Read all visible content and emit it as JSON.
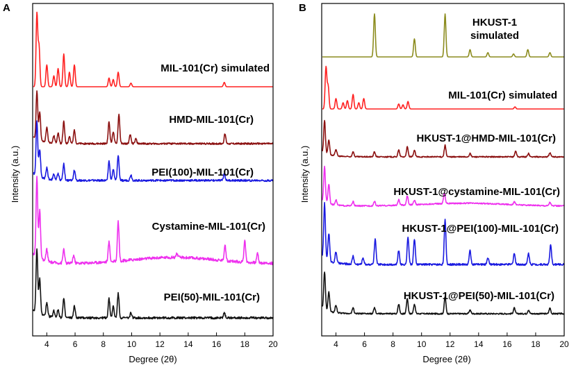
{
  "chart_data": [
    {
      "panel": "A",
      "type": "line",
      "xlabel": "Degree (2θ)",
      "ylabel": "Intensity (a.u.)",
      "xlim": [
        3,
        20
      ],
      "xticks": [
        4,
        6,
        8,
        10,
        12,
        14,
        16,
        18,
        20
      ],
      "yticks_shown": false,
      "series": [
        {
          "name": "MIL-101(Cr) simulated",
          "color": "#ff2020",
          "peaks": [
            [
              3.3,
              1.0
            ],
            [
              3.45,
              0.55
            ],
            [
              4.0,
              0.3
            ],
            [
              4.5,
              0.15
            ],
            [
              4.8,
              0.25
            ],
            [
              5.2,
              0.45
            ],
            [
              5.6,
              0.2
            ],
            [
              5.95,
              0.3
            ],
            [
              8.4,
              0.12
            ],
            [
              8.7,
              0.1
            ],
            [
              9.05,
              0.2
            ],
            [
              9.95,
              0.05
            ],
            [
              16.55,
              0.06
            ]
          ]
        },
        {
          "name": "HMD-MIL-101(Cr)",
          "color": "#8b1010",
          "peaks": [
            [
              3.3,
              1.0
            ],
            [
              3.5,
              0.6
            ],
            [
              4.0,
              0.3
            ],
            [
              4.5,
              0.15
            ],
            [
              4.8,
              0.22
            ],
            [
              5.2,
              0.45
            ],
            [
              5.6,
              0.15
            ],
            [
              5.95,
              0.28
            ],
            [
              8.4,
              0.45
            ],
            [
              8.7,
              0.25
            ],
            [
              9.1,
              0.6
            ],
            [
              9.9,
              0.18
            ],
            [
              10.3,
              0.1
            ],
            [
              16.6,
              0.2
            ]
          ]
        },
        {
          "name": "PEI(100)-MIL-101(Cr)",
          "color": "#1a1ae0",
          "peaks": [
            [
              3.3,
              1.0
            ],
            [
              3.5,
              0.5
            ],
            [
              4.0,
              0.2
            ],
            [
              4.5,
              0.1
            ],
            [
              4.8,
              0.12
            ],
            [
              5.2,
              0.3
            ],
            [
              5.95,
              0.18
            ],
            [
              8.4,
              0.35
            ],
            [
              8.7,
              0.2
            ],
            [
              9.05,
              0.45
            ],
            [
              9.95,
              0.1
            ],
            [
              16.55,
              0.12
            ]
          ]
        },
        {
          "name": "Cystamine-MIL-101(Cr)",
          "color": "#ee30ee",
          "peaks": [
            [
              3.3,
              1.0
            ],
            [
              3.5,
              0.6
            ],
            [
              4.0,
              0.15
            ],
            [
              5.2,
              0.18
            ],
            [
              5.9,
              0.1
            ],
            [
              8.4,
              0.25
            ],
            [
              9.05,
              0.5
            ],
            [
              13.2,
              0.05
            ],
            [
              16.6,
              0.2
            ],
            [
              18.0,
              0.28
            ],
            [
              18.9,
              0.12
            ]
          ]
        },
        {
          "name": "PEI(50)-MIL-101(Cr)",
          "color": "#111111",
          "peaks": [
            [
              3.3,
              1.0
            ],
            [
              3.5,
              0.55
            ],
            [
              4.0,
              0.2
            ],
            [
              4.5,
              0.1
            ],
            [
              4.8,
              0.12
            ],
            [
              5.2,
              0.3
            ],
            [
              5.95,
              0.18
            ],
            [
              8.4,
              0.3
            ],
            [
              8.7,
              0.18
            ],
            [
              9.05,
              0.38
            ],
            [
              9.95,
              0.08
            ],
            [
              16.55,
              0.08
            ]
          ]
        }
      ]
    },
    {
      "panel": "B",
      "type": "line",
      "xlabel": "Degree (2θ)",
      "ylabel": "Intensity (a.u.)",
      "xlim": [
        3,
        20
      ],
      "xticks": [
        4,
        6,
        8,
        10,
        12,
        14,
        16,
        18,
        20
      ],
      "yticks_shown": false,
      "series": [
        {
          "name": "HKUST-1 simulated",
          "label_lines": [
            "HKUST-1",
            "simulated"
          ],
          "color": "#8c8c1e",
          "peaks": [
            [
              6.7,
              1.0
            ],
            [
              9.5,
              0.42
            ],
            [
              11.65,
              1.0
            ],
            [
              13.4,
              0.17
            ],
            [
              14.65,
              0.1
            ],
            [
              16.45,
              0.07
            ],
            [
              17.45,
              0.17
            ],
            [
              19.0,
              0.1
            ]
          ]
        },
        {
          "name": "MIL-101(Cr) simulated",
          "color": "#ff2020",
          "peaks": [
            [
              3.3,
              1.0
            ],
            [
              3.45,
              0.55
            ],
            [
              4.0,
              0.25
            ],
            [
              4.5,
              0.15
            ],
            [
              4.8,
              0.2
            ],
            [
              5.2,
              0.35
            ],
            [
              5.6,
              0.15
            ],
            [
              5.95,
              0.25
            ],
            [
              8.4,
              0.12
            ],
            [
              8.7,
              0.1
            ],
            [
              9.05,
              0.18
            ],
            [
              16.55,
              0.05
            ]
          ]
        },
        {
          "name": "HKUST-1@HMD-MIL-101(Cr)",
          "color": "#8b1010",
          "peaks": [
            [
              3.2,
              1.0
            ],
            [
              3.5,
              0.45
            ],
            [
              4.0,
              0.2
            ],
            [
              5.2,
              0.15
            ],
            [
              6.7,
              0.15
            ],
            [
              8.4,
              0.2
            ],
            [
              9.0,
              0.3
            ],
            [
              9.5,
              0.2
            ],
            [
              11.65,
              0.35
            ],
            [
              13.4,
              0.1
            ],
            [
              16.6,
              0.18
            ],
            [
              17.5,
              0.1
            ],
            [
              19.0,
              0.12
            ]
          ]
        },
        {
          "name": "HKUST-1@cystamine-MIL-101(Cr)",
          "color": "#ee30ee",
          "peaks": [
            [
              3.2,
              1.0
            ],
            [
              3.5,
              0.55
            ],
            [
              4.0,
              0.15
            ],
            [
              5.2,
              0.12
            ],
            [
              6.7,
              0.12
            ],
            [
              8.4,
              0.15
            ],
            [
              9.0,
              0.25
            ],
            [
              9.5,
              0.12
            ],
            [
              11.6,
              0.3
            ],
            [
              16.5,
              0.08
            ],
            [
              19.0,
              0.1
            ]
          ]
        },
        {
          "name": "HKUST-1@PEI(100)-MIL-101(Cr)",
          "color": "#1a1ae0",
          "peaks": [
            [
              3.2,
              1.0
            ],
            [
              3.5,
              0.5
            ],
            [
              4.0,
              0.2
            ],
            [
              5.2,
              0.15
            ],
            [
              5.9,
              0.12
            ],
            [
              6.75,
              0.45
            ],
            [
              8.4,
              0.25
            ],
            [
              9.05,
              0.5
            ],
            [
              9.5,
              0.45
            ],
            [
              11.65,
              0.8
            ],
            [
              13.4,
              0.25
            ],
            [
              14.65,
              0.12
            ],
            [
              16.5,
              0.2
            ],
            [
              17.5,
              0.2
            ],
            [
              19.05,
              0.35
            ]
          ]
        },
        {
          "name": "HKUST-1@PEI(50)-MIL-101(Cr)",
          "color": "#111111",
          "peaks": [
            [
              3.2,
              1.0
            ],
            [
              3.5,
              0.5
            ],
            [
              4.0,
              0.2
            ],
            [
              5.2,
              0.15
            ],
            [
              6.7,
              0.15
            ],
            [
              8.4,
              0.25
            ],
            [
              9.0,
              0.4
            ],
            [
              9.5,
              0.25
            ],
            [
              11.65,
              0.45
            ],
            [
              13.4,
              0.1
            ],
            [
              16.5,
              0.15
            ],
            [
              17.5,
              0.1
            ],
            [
              19.0,
              0.15
            ]
          ]
        }
      ]
    }
  ]
}
